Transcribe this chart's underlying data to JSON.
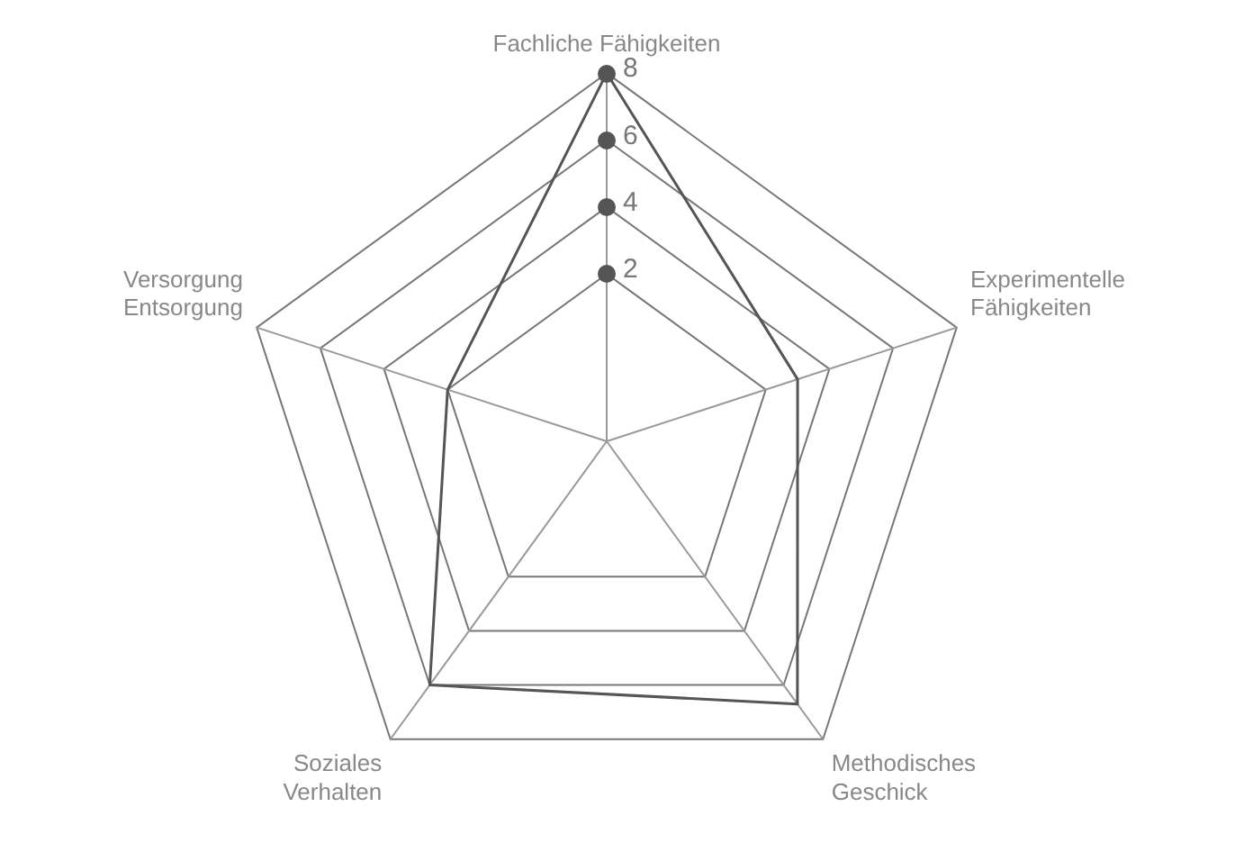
{
  "chart_data": {
    "type": "radar",
    "categories": [
      "Fachliche Fähigkeiten",
      "Experimentelle Fähigkeiten",
      "Methodisches Geschick",
      "Soziales Verhalten",
      "Versorgung Entsorgung"
    ],
    "series": [
      {
        "color": "#555555",
        "values": [
          8,
          3,
          6.7,
          6,
          2
        ]
      }
    ],
    "ylim": [
      -3,
      8
    ],
    "yticks": [
      2,
      4,
      6,
      8
    ],
    "grid": true,
    "legend": false
  }
}
